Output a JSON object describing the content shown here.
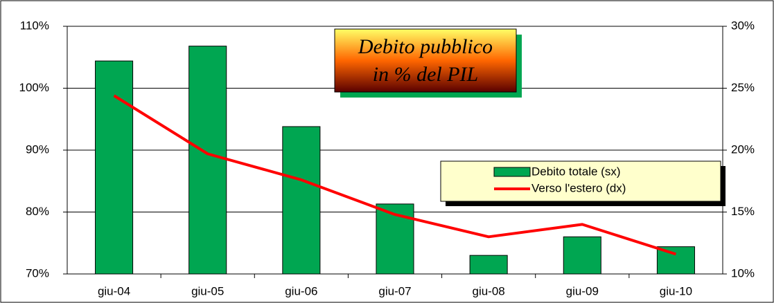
{
  "chart_data": {
    "type": "bar-line",
    "title": [
      "Debito pubblico",
      "in % del PIL"
    ],
    "categories": [
      "giu-04",
      "giu-05",
      "giu-06",
      "giu-07",
      "giu-08",
      "giu-09",
      "giu-10"
    ],
    "series": [
      {
        "name": "Debito totale (sx)",
        "type": "bar",
        "color": "#00a651",
        "axis": "y",
        "values": [
          104.4,
          106.8,
          93.8,
          81.3,
          73.0,
          76.0,
          74.4
        ]
      },
      {
        "name": "Verso l'estero (dx)",
        "type": "line",
        "color": "#ff0000",
        "axis": "y2",
        "values": [
          24.4,
          19.7,
          17.6,
          14.8,
          13.0,
          14.0,
          11.6
        ]
      }
    ],
    "ylim": [
      70,
      110
    ],
    "yticks": [
      {
        "value": 70,
        "label": "70%"
      },
      {
        "value": 80,
        "label": "80%"
      },
      {
        "value": 90,
        "label": "90%"
      },
      {
        "value": 100,
        "label": "100%"
      },
      {
        "value": 110,
        "label": "110%"
      }
    ],
    "y2lim": [
      10,
      30
    ],
    "y2ticks": [
      {
        "value": 10,
        "label": "10%"
      },
      {
        "value": 15,
        "label": "15%"
      },
      {
        "value": 20,
        "label": "20%"
      },
      {
        "value": 25,
        "label": "25%"
      },
      {
        "value": 30,
        "label": "30%"
      }
    ],
    "grid": true,
    "legend": "right"
  }
}
